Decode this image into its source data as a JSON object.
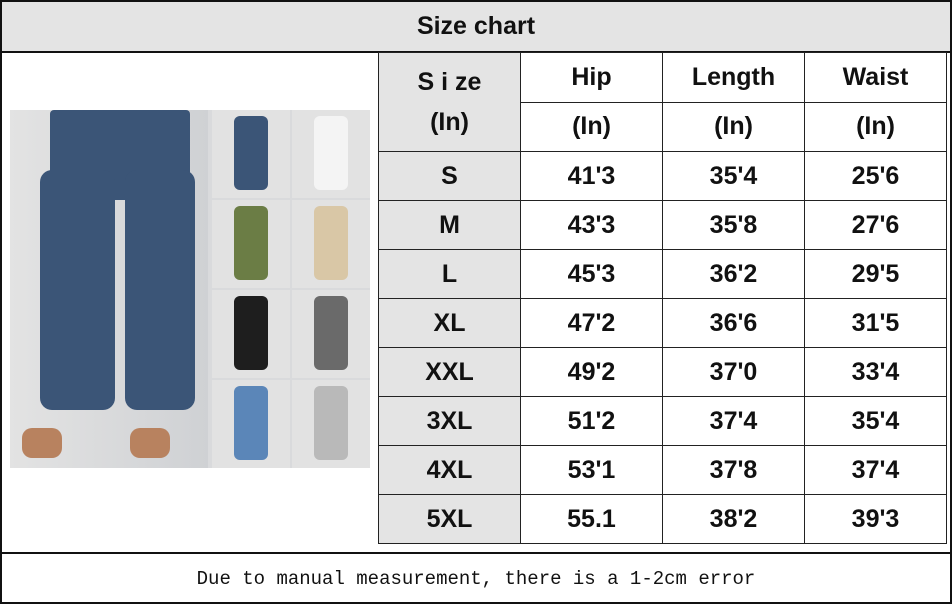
{
  "title": "Size chart",
  "table": {
    "header_size": [
      "S i ze",
      "(In)"
    ],
    "columns": [
      {
        "name": "Hip",
        "unit": "(In)"
      },
      {
        "name": "Length",
        "unit": "(In)"
      },
      {
        "name": "Waist",
        "unit": "(In)"
      }
    ],
    "rows": [
      {
        "size": "S",
        "hip": "41'3",
        "length": "35'4",
        "waist": "25'6"
      },
      {
        "size": "M",
        "hip": "43'3",
        "length": "35'8",
        "waist": "27'6"
      },
      {
        "size": "L",
        "hip": "45'3",
        "length": "36'2",
        "waist": "29'5"
      },
      {
        "size": "XL",
        "hip": "47'2",
        "length": "36'6",
        "waist": "31'5"
      },
      {
        "size": "XXL",
        "hip": "49'2",
        "length": "37'0",
        "waist": "33'4"
      },
      {
        "size": "3XL",
        "hip": "51'2",
        "length": "37'4",
        "waist": "35'4"
      },
      {
        "size": "4XL",
        "hip": "53'1",
        "length": "37'8",
        "waist": "37'4"
      },
      {
        "size": "5XL",
        "hip": "55.1",
        "length": "38'2",
        "waist": "39'3"
      }
    ]
  },
  "product_colors": [
    "#3b5577",
    "#f4f4f4",
    "#6b7d45",
    "#d9c7a6",
    "#1e1e1e",
    "#6a6a6a",
    "#5b86b8",
    "#b9b9b9"
  ],
  "footer": "Due to manual measurement, there is a 1-2cm error"
}
